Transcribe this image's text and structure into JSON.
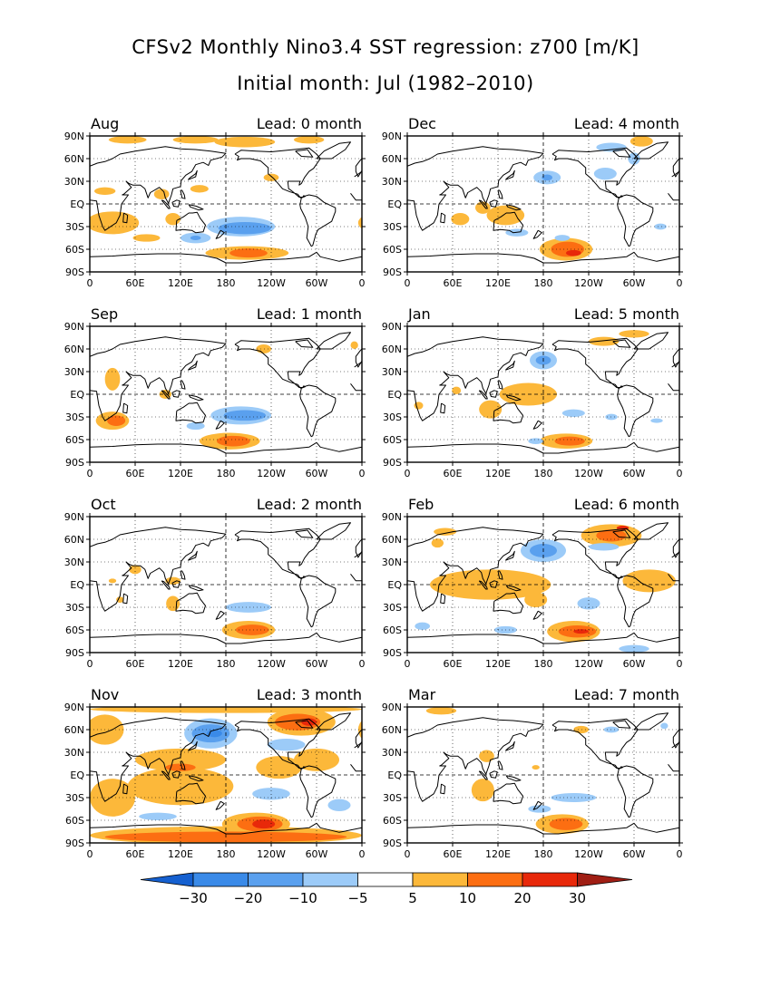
{
  "title": "CFSv2 Monthly Nino3.4 SST regression: z700 [m/K]",
  "subtitle": "Initial month: Jul (1982–2010)",
  "lat_labels": [
    "90N",
    "60N",
    "30N",
    "EQ",
    "30S",
    "60S",
    "90S"
  ],
  "lon_labels": [
    "0",
    "60E",
    "120E",
    "180",
    "120W",
    "60W",
    "0"
  ],
  "panels": [
    {
      "month": "Aug",
      "lead": "Lead: 0 month"
    },
    {
      "month": "Dec",
      "lead": "Lead: 4 month"
    },
    {
      "month": "Sep",
      "lead": "Lead: 1 month"
    },
    {
      "month": "Jan",
      "lead": "Lead: 5 month"
    },
    {
      "month": "Oct",
      "lead": "Lead: 2 month"
    },
    {
      "month": "Feb",
      "lead": "Lead: 6 month"
    },
    {
      "month": "Nov",
      "lead": "Lead: 3 month"
    },
    {
      "month": "Mar",
      "lead": "Lead: 7 month"
    }
  ],
  "colorbar": {
    "labels": [
      "−30",
      "−20",
      "−10",
      "−5",
      "5",
      "10",
      "20",
      "30"
    ],
    "colors": [
      "#1e6fdc",
      "#3a8ae8",
      "#5aa0ee",
      "#9ccbf8",
      "#ffffff",
      "#fcb83a",
      "#fc6e12",
      "#e8280a",
      "#a01e14"
    ]
  },
  "contour_colors": {
    "light_warm": "#fcb83a",
    "mid_warm": "#fc6e12",
    "strong_warm": "#e8280a",
    "light_cool": "#9ccbf8",
    "mid_cool": "#5aa0ee",
    "strong_cool": "#3a8ae8"
  }
}
